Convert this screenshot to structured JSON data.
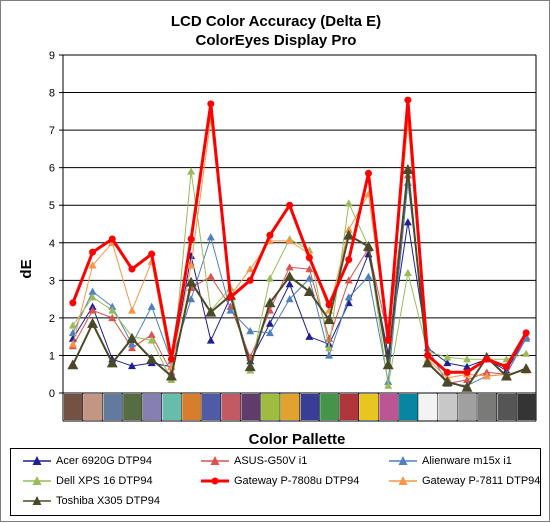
{
  "chart_data": {
    "type": "line",
    "title": "LCD Color Accuracy (Delta E)",
    "subtitle": "ColorEyes Display Pro",
    "xlabel": "Color Pallette",
    "ylabel": "dE",
    "ylim": [
      0,
      9
    ],
    "yticks": [
      "0",
      "1",
      "2",
      "3",
      "4",
      "5",
      "6",
      "7",
      "8",
      "9"
    ],
    "grid": true,
    "legend_position": "bottom",
    "swatch_colors": [
      "#735244",
      "#c29682",
      "#627a9d",
      "#576c43",
      "#8580b1",
      "#67bdaa",
      "#d67e2c",
      "#505ba6",
      "#c15a63",
      "#5e3c6c",
      "#9dbc40",
      "#e0a32e",
      "#383d96",
      "#469449",
      "#af363c",
      "#e7c71f",
      "#bb5695",
      "#0885a1",
      "#f3f3f2",
      "#c8c8c8",
      "#a0a0a0",
      "#7a7a79",
      "#555555",
      "#343434"
    ],
    "series": [
      {
        "name": "Acer 6920G DTP94",
        "color": "#1f1f8f",
        "marker": "triangle",
        "values": [
          1.45,
          2.3,
          0.9,
          0.72,
          0.8,
          0.7,
          3.65,
          1.4,
          2.55,
          0.85,
          1.85,
          2.9,
          1.5,
          1.3,
          2.4,
          3.7,
          1.05,
          4.55,
          1.2,
          0.8,
          0.7,
          0.9,
          0.6,
          1.5
        ]
      },
      {
        "name": "ASUS-G50V i1",
        "color": "#d9534f",
        "marker": "triangle",
        "values": [
          1.25,
          2.2,
          2.0,
          1.2,
          1.55,
          0.55,
          2.8,
          3.1,
          2.3,
          0.95,
          2.2,
          3.35,
          3.3,
          1.45,
          3.0,
          3.85,
          1.5,
          5.8,
          0.85,
          0.25,
          0.35,
          0.55,
          0.5,
          1.5
        ]
      },
      {
        "name": "Alienware m15x i1",
        "color": "#4f81bd",
        "marker": "triangle",
        "values": [
          1.6,
          2.7,
          2.3,
          1.3,
          2.3,
          0.85,
          2.5,
          4.15,
          2.2,
          1.65,
          1.6,
          2.5,
          3.05,
          1.0,
          2.55,
          3.1,
          0.3,
          5.6,
          1.2,
          0.25,
          0.2,
          0.45,
          0.5,
          1.45
        ]
      },
      {
        "name": "Dell XPS 16 DTP94",
        "color": "#9bbb59",
        "marker": "triangle",
        "values": [
          1.8,
          2.55,
          2.2,
          1.5,
          1.4,
          0.35,
          5.9,
          2.2,
          2.8,
          0.6,
          3.05,
          4.1,
          3.8,
          1.2,
          5.05,
          3.9,
          0.2,
          3.2,
          1.1,
          0.95,
          0.9,
          0.9,
          0.9,
          1.05
        ]
      },
      {
        "name": "Gateway P-7808u DTP94",
        "color": "#ff0000",
        "marker": "circle",
        "values": [
          2.4,
          3.75,
          4.1,
          3.3,
          3.7,
          0.9,
          4.1,
          7.7,
          2.55,
          3.0,
          4.2,
          5.0,
          3.6,
          2.35,
          3.55,
          5.85,
          1.4,
          7.8,
          1.0,
          0.55,
          0.55,
          0.9,
          0.7,
          1.6
        ]
      },
      {
        "name": "Gateway P-7811 DTP94",
        "color": "#f79646",
        "marker": "triangle",
        "values": [
          1.3,
          3.4,
          4.0,
          2.2,
          3.5,
          0.7,
          3.4,
          7.3,
          2.6,
          3.3,
          4.05,
          4.05,
          3.7,
          2.2,
          4.35,
          5.3,
          1.4,
          7.25,
          0.9,
          0.4,
          0.5,
          0.45,
          0.5,
          0.6
        ]
      },
      {
        "name": "Toshiba X305 DTP94",
        "color": "#4a4a2a",
        "marker": "triangle",
        "values": [
          0.75,
          1.85,
          0.8,
          1.45,
          0.9,
          0.45,
          2.95,
          2.15,
          2.6,
          0.7,
          2.4,
          3.1,
          2.7,
          1.95,
          4.2,
          3.9,
          0.75,
          5.95,
          0.8,
          0.3,
          0.15,
          0.95,
          0.45,
          0.65
        ]
      }
    ]
  }
}
